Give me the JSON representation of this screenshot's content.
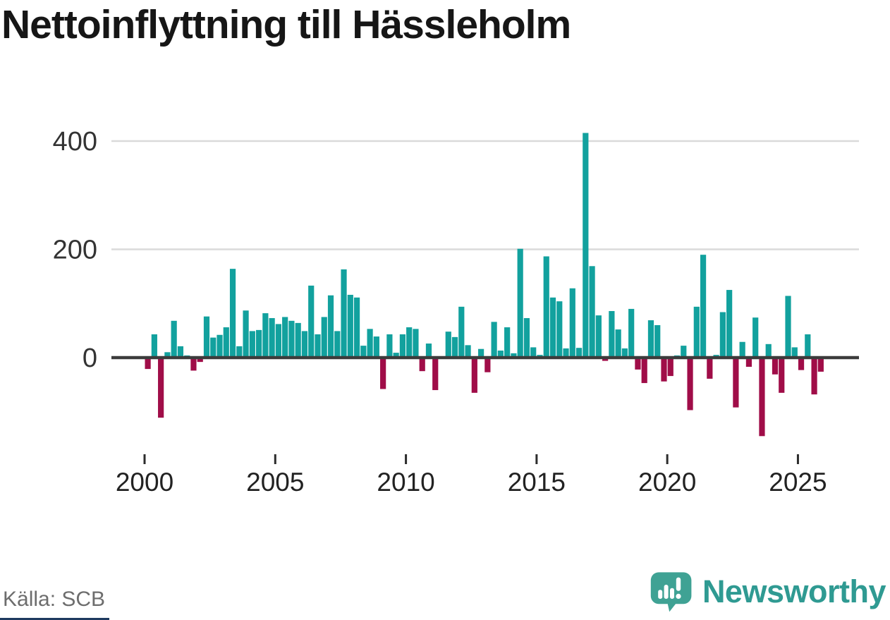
{
  "header": {
    "title": "Nettoinflyttning till Hässleholm"
  },
  "footer": {
    "source": "Källa: SCB",
    "brand": "Newsworthy"
  },
  "colors": {
    "positive_bar": "#12a19e",
    "negative_bar": "#a00d48",
    "axis_line": "#3c3c3c",
    "gridline": "#dadada",
    "tick_label": "#222222",
    "brand_bubble": "#3fa294",
    "brand_text": "#2f9a92",
    "bottom_strip": "#1e3a5f"
  },
  "chart_data": {
    "type": "bar",
    "title": "Nettoinflyttning till Hässleholm",
    "frequency": "quarterly",
    "x_start": "2000 Q1",
    "x_end": "2025 Q4",
    "quarters": [
      "2000 Q1",
      "2000 Q2",
      "2000 Q3",
      "2000 Q4",
      "2001 Q1",
      "2001 Q2",
      "2001 Q3",
      "2001 Q4",
      "2002 Q1",
      "2002 Q2",
      "2002 Q3",
      "2002 Q4",
      "2003 Q1",
      "2003 Q2",
      "2003 Q3",
      "2003 Q4",
      "2004 Q1",
      "2004 Q2",
      "2004 Q3",
      "2004 Q4",
      "2005 Q1",
      "2005 Q2",
      "2005 Q3",
      "2005 Q4",
      "2006 Q1",
      "2006 Q2",
      "2006 Q3",
      "2006 Q4",
      "2007 Q1",
      "2007 Q2",
      "2007 Q3",
      "2007 Q4",
      "2008 Q1",
      "2008 Q2",
      "2008 Q3",
      "2008 Q4",
      "2009 Q1",
      "2009 Q2",
      "2009 Q3",
      "2009 Q4",
      "2010 Q1",
      "2010 Q2",
      "2010 Q3",
      "2010 Q4",
      "2011 Q1",
      "2011 Q2",
      "2011 Q3",
      "2011 Q4",
      "2012 Q1",
      "2012 Q2",
      "2012 Q3",
      "2012 Q4",
      "2013 Q1",
      "2013 Q2",
      "2013 Q3",
      "2013 Q4",
      "2014 Q1",
      "2014 Q2",
      "2014 Q3",
      "2014 Q4",
      "2015 Q1",
      "2015 Q2",
      "2015 Q3",
      "2015 Q4",
      "2016 Q1",
      "2016 Q2",
      "2016 Q3",
      "2016 Q4",
      "2017 Q1",
      "2017 Q2",
      "2017 Q3",
      "2017 Q4",
      "2018 Q1",
      "2018 Q2",
      "2018 Q3",
      "2018 Q4",
      "2019 Q1",
      "2019 Q2",
      "2019 Q3",
      "2019 Q4",
      "2020 Q1",
      "2020 Q2",
      "2020 Q3",
      "2020 Q4",
      "2021 Q1",
      "2021 Q2",
      "2021 Q3",
      "2021 Q4",
      "2022 Q1",
      "2022 Q2",
      "2022 Q3",
      "2022 Q4",
      "2023 Q1",
      "2023 Q2",
      "2023 Q3",
      "2023 Q4",
      "2024 Q1",
      "2024 Q2",
      "2024 Q3",
      "2024 Q4",
      "2025 Q1",
      "2025 Q2",
      "2025 Q3",
      "2025 Q4"
    ],
    "values": [
      -21,
      43,
      -111,
      10,
      68,
      21,
      4,
      -24,
      -8,
      76,
      37,
      42,
      56,
      164,
      21,
      87,
      49,
      51,
      82,
      73,
      62,
      75,
      68,
      64,
      49,
      133,
      43,
      75,
      115,
      49,
      163,
      116,
      111,
      22,
      53,
      39,
      -58,
      43,
      9,
      43,
      56,
      53,
      -25,
      26,
      -60,
      2,
      48,
      38,
      94,
      23,
      -65,
      16,
      -27,
      66,
      13,
      56,
      8,
      201,
      73,
      19,
      5,
      187,
      111,
      104,
      17,
      128,
      18,
      415,
      169,
      78,
      -6,
      86,
      52,
      17,
      90,
      -22,
      -47,
      69,
      60,
      -44,
      -34,
      4,
      22,
      -97,
      94,
      190,
      -39,
      5,
      84,
      125,
      -92,
      29,
      -17,
      74,
      -145,
      25,
      -31,
      -65,
      114,
      19,
      -23,
      43,
      -68,
      -26
    ],
    "y_ticks": [
      0,
      200,
      400
    ],
    "x_tick_years": [
      2000,
      2005,
      2010,
      2015,
      2020,
      2025
    ],
    "ylim": [
      -160,
      430
    ],
    "grid": "horizontal",
    "legend": "none"
  }
}
